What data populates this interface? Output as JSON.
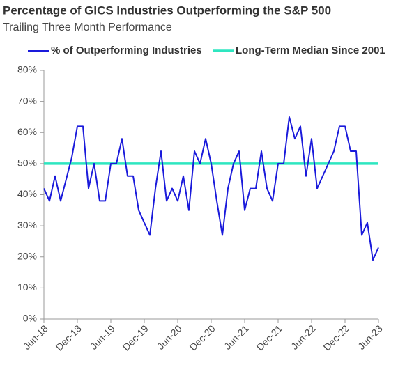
{
  "chart_data": {
    "type": "line",
    "title": "Percentage of GICS Industries Outperforming the S&P 500",
    "subtitle": "Trailing Three Month Performance",
    "categories": [
      "Jun-18",
      null,
      null,
      null,
      null,
      null,
      "Dec-18",
      null,
      null,
      null,
      null,
      null,
      "Jun-19",
      null,
      null,
      null,
      null,
      null,
      "Dec-19",
      null,
      null,
      null,
      null,
      null,
      "Jun-20",
      null,
      null,
      null,
      null,
      null,
      "Dec-20",
      null,
      null,
      null,
      null,
      null,
      "Jun-21",
      null,
      null,
      null,
      null,
      null,
      "Dec-21",
      null,
      null,
      null,
      null,
      null,
      "Jun-22",
      null,
      null,
      null,
      null,
      null,
      "Dec-22",
      null,
      null,
      null,
      null,
      null,
      "Jun-23"
    ],
    "series": [
      {
        "name": "% of Outperforming Industries",
        "color": "#1a1adb",
        "values": [
          42,
          38,
          46,
          38,
          45,
          52,
          62,
          62,
          42,
          50,
          38,
          38,
          50,
          50,
          58,
          46,
          46,
          35,
          31,
          27,
          42,
          54,
          38,
          42,
          38,
          46,
          35,
          54,
          50,
          58,
          50,
          38,
          27,
          42,
          50,
          54,
          35,
          42,
          42,
          54,
          42,
          38,
          50,
          50,
          65,
          58,
          62,
          46,
          58,
          42,
          46,
          50,
          54,
          62,
          62,
          54,
          54,
          27,
          31,
          19,
          23
        ]
      },
      {
        "name": "Long-Term Median Since 2001",
        "color": "#2ee6c0",
        "values": [
          50,
          50,
          50,
          50,
          50,
          50,
          50,
          50,
          50,
          50,
          50,
          50,
          50,
          50,
          50,
          50,
          50,
          50,
          50,
          50,
          50,
          50,
          50,
          50,
          50,
          50,
          50,
          50,
          50,
          50,
          50,
          50,
          50,
          50,
          50,
          50,
          50,
          50,
          50,
          50,
          50,
          50,
          50,
          50,
          50,
          50,
          50,
          50,
          50,
          50,
          50,
          50,
          50,
          50,
          50,
          50,
          50,
          50,
          50,
          50,
          50
        ]
      }
    ],
    "ylim": [
      0,
      80
    ],
    "yticks": [
      {
        "value": 0,
        "label": "0%"
      },
      {
        "value": 10,
        "label": "10%"
      },
      {
        "value": 20,
        "label": "20%"
      },
      {
        "value": 30,
        "label": "30%"
      },
      {
        "value": 40,
        "label": "40%"
      },
      {
        "value": 50,
        "label": "50%"
      },
      {
        "value": 60,
        "label": "60%"
      },
      {
        "value": 70,
        "label": "70%"
      },
      {
        "value": 80,
        "label": "80%"
      }
    ],
    "legend": "top"
  }
}
